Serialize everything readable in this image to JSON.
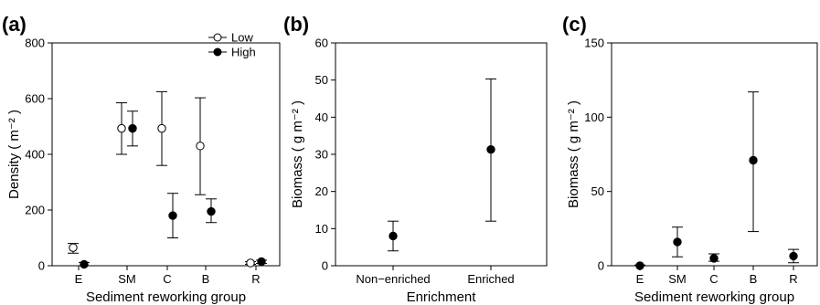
{
  "chart_data": [
    {
      "panel": "(a)",
      "type": "scatter",
      "xlabel": "Sediment reworking group",
      "ylabel": "Density ( m⁻² )",
      "categories": [
        "E",
        "SM",
        "C",
        "B",
        "R"
      ],
      "ylim": [
        0,
        800
      ],
      "yticks": [
        0,
        200,
        400,
        600,
        800
      ],
      "grid": false,
      "legend": "top-right",
      "series": [
        {
          "name": "Low",
          "marker": "open-circle",
          "values": [
            65,
            493,
            493,
            430,
            10
          ],
          "lower": [
            45,
            400,
            360,
            255,
            5
          ],
          "upper": [
            80,
            585,
            625,
            603,
            15
          ]
        },
        {
          "name": "High",
          "marker": "filled-circle",
          "values": [
            5,
            493,
            180,
            195,
            15
          ],
          "lower": [
            0,
            430,
            100,
            155,
            8
          ],
          "upper": [
            12,
            555,
            260,
            240,
            20
          ]
        }
      ]
    },
    {
      "panel": "(b)",
      "type": "scatter",
      "xlabel": "Enrichment",
      "ylabel": "Biomass ( g m⁻² )",
      "categories": [
        "Non−enriched",
        "Enriched"
      ],
      "ylim": [
        0,
        60
      ],
      "yticks": [
        0,
        10,
        20,
        30,
        40,
        50,
        60
      ],
      "grid": false,
      "series": [
        {
          "marker": "filled-circle",
          "values": [
            8,
            31.3
          ],
          "lower": [
            4,
            12
          ],
          "upper": [
            12,
            50.3
          ]
        }
      ]
    },
    {
      "panel": "(c)",
      "type": "scatter",
      "xlabel": "Sediment reworking group",
      "ylabel": "Biomass ( g m⁻² )",
      "categories": [
        "E",
        "SM",
        "C",
        "B",
        "R"
      ],
      "ylim": [
        0,
        150
      ],
      "yticks": [
        0,
        50,
        100,
        150
      ],
      "grid": false,
      "series": [
        {
          "marker": "filled-circle",
          "values": [
            0,
            16,
            5,
            71,
            6.5
          ],
          "lower": [
            0,
            6,
            3,
            23,
            2
          ],
          "upper": [
            0.5,
            26,
            8,
            117,
            11
          ]
        }
      ]
    }
  ]
}
